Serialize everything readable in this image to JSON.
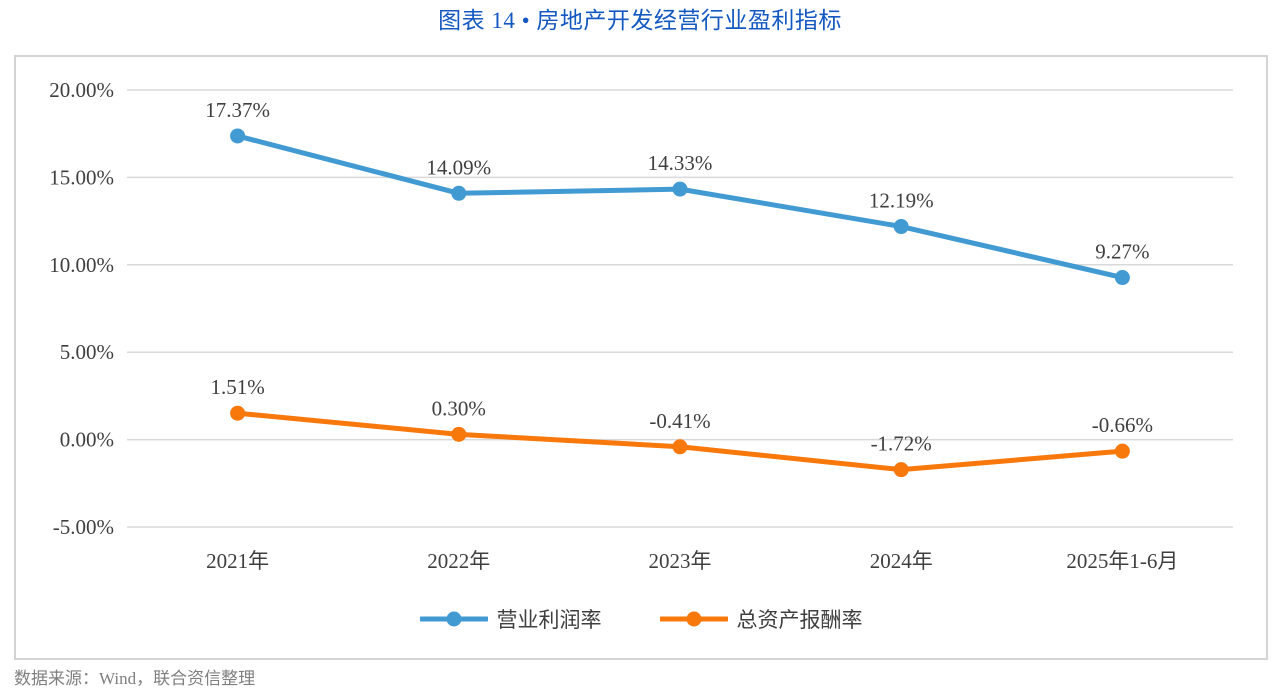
{
  "title": "图表 14 • 房地产开发经营行业盈利指标",
  "footer": "数据来源：Wind，联合资信整理",
  "colors": {
    "title_blue": "#1459C1",
    "grid_line": "#D9D9D9",
    "chart_border": "#D4D4D4",
    "axis_text": "#3F3F3F",
    "footer_gray": "#7F7F7F",
    "series_blue": "#429AD3",
    "series_orange": "#F8780C"
  },
  "chart_data": {
    "type": "line",
    "title": "图表 14 • 房地产开发经营行业盈利指标",
    "categories": [
      "2021年",
      "2022年",
      "2023年",
      "2024年",
      "2025年1-6月"
    ],
    "series": [
      {
        "name": "营业利润率",
        "color": "#429AD3",
        "values": [
          17.37,
          14.09,
          14.33,
          12.19,
          9.27
        ],
        "labels": [
          "17.37%",
          "14.09%",
          "14.33%",
          "12.19%",
          "9.27%"
        ]
      },
      {
        "name": "总资产报酬率",
        "color": "#F8780C",
        "values": [
          1.51,
          0.3,
          -0.41,
          -1.72,
          -0.66
        ],
        "labels": [
          "1.51%",
          "0.30%",
          "-0.41%",
          "-1.72%",
          "-0.66%"
        ]
      }
    ],
    "y_axis": {
      "min": -5,
      "max": 20,
      "ticks": [
        {
          "label": "20.00%",
          "value": 20
        },
        {
          "label": "15.00%",
          "value": 15
        },
        {
          "label": "10.00%",
          "value": 10
        },
        {
          "label": "5.00%",
          "value": 5
        },
        {
          "label": "0.00%",
          "value": 0
        },
        {
          "label": "-5.00%",
          "value": -5
        }
      ]
    },
    "grid": true,
    "legend_position": "bottom"
  }
}
